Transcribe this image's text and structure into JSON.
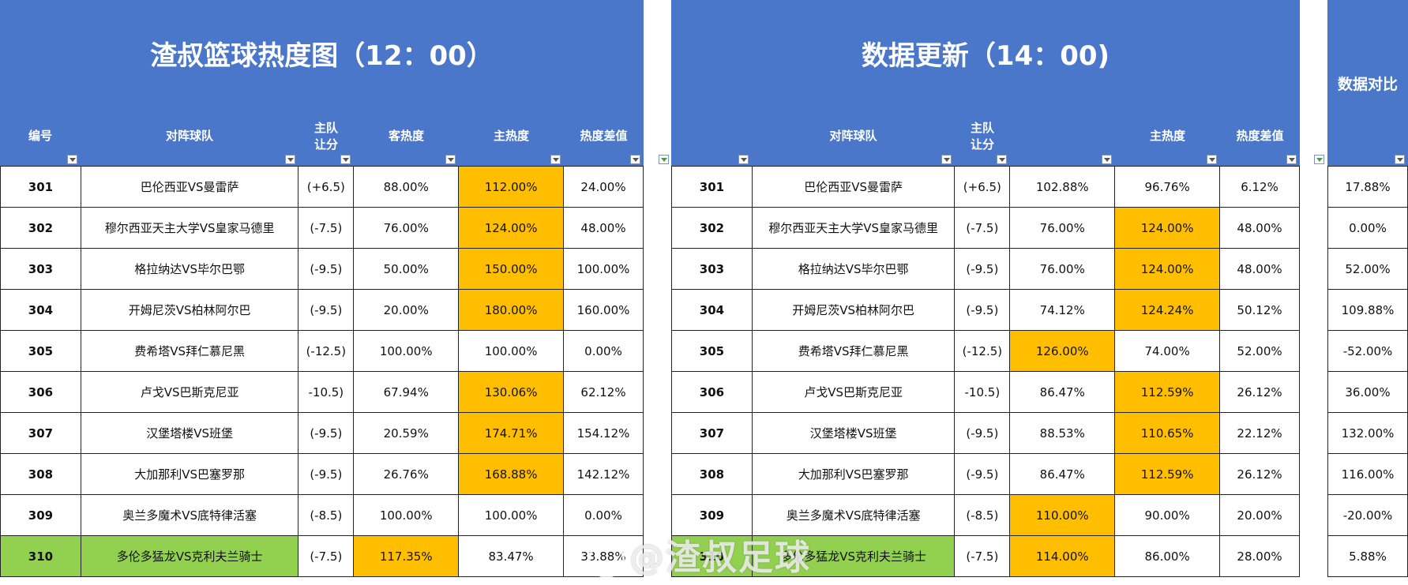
{
  "left": {
    "title": "渣叔篮球热度图（12：00）",
    "headers": {
      "id": "编号",
      "teams": "对阵球队",
      "handicap_line1": "主队",
      "handicap_line2": "让分",
      "away": "客热度",
      "home": "主热度",
      "diff": "热度差值"
    },
    "rows": [
      {
        "id": "301",
        "teams": "巴伦西亚VS曼雷萨",
        "handicap": "(+6.5)",
        "away": "88.00%",
        "home": "112.00%",
        "diff": "24.00%",
        "hl": "home",
        "green": false
      },
      {
        "id": "302",
        "teams": "穆尔西亚天主大学VS皇家马德里",
        "handicap": "(-7.5)",
        "away": "76.00%",
        "home": "124.00%",
        "diff": "48.00%",
        "hl": "home",
        "green": false
      },
      {
        "id": "303",
        "teams": "格拉纳达VS毕尔巴鄂",
        "handicap": "(-9.5)",
        "away": "50.00%",
        "home": "150.00%",
        "diff": "100.00%",
        "hl": "home",
        "green": false
      },
      {
        "id": "304",
        "teams": "开姆尼茨VS柏林阿尔巴",
        "handicap": "(-9.5)",
        "away": "20.00%",
        "home": "180.00%",
        "diff": "160.00%",
        "hl": "home",
        "green": false
      },
      {
        "id": "305",
        "teams": "费希塔VS拜仁慕尼黑",
        "handicap": "(-12.5)",
        "away": "100.00%",
        "home": "100.00%",
        "diff": "0.00%",
        "hl": "",
        "green": false
      },
      {
        "id": "306",
        "teams": "卢戈VS巴斯克尼亚",
        "handicap": "-10.5)",
        "away": "67.94%",
        "home": "130.06%",
        "diff": "62.12%",
        "hl": "home",
        "green": false
      },
      {
        "id": "307",
        "teams": "汉堡塔楼VS班堡",
        "handicap": "(-9.5)",
        "away": "20.59%",
        "home": "174.71%",
        "diff": "154.12%",
        "hl": "home",
        "green": false
      },
      {
        "id": "308",
        "teams": "大加那利VS巴塞罗那",
        "handicap": "(-9.5)",
        "away": "26.76%",
        "home": "168.88%",
        "diff": "142.12%",
        "hl": "home",
        "green": false
      },
      {
        "id": "309",
        "teams": "奥兰多魔术VS底特律活塞",
        "handicap": "(-8.5)",
        "away": "100.00%",
        "home": "100.00%",
        "diff": "0.00%",
        "hl": "",
        "green": false
      },
      {
        "id": "310",
        "teams": "多伦多猛龙VS克利夫兰骑士",
        "handicap": "(-7.5)",
        "away": "117.35%",
        "home": "83.47%",
        "diff": "33.88%",
        "hl": "away",
        "green": true
      }
    ]
  },
  "right": {
    "title": "数据更新（14：00)",
    "headers": {
      "teams": "对阵球队",
      "handicap_line1": "主队",
      "handicap_line2": "让分",
      "away": "",
      "home": "主热度",
      "diff": "热度差值"
    },
    "rows": [
      {
        "id": "301",
        "teams": "巴伦西亚VS曼雷萨",
        "handicap": "(+6.5)",
        "away": "102.88%",
        "home": "96.76%",
        "diff": "6.12%",
        "hl": "",
        "green": false
      },
      {
        "id": "302",
        "teams": "穆尔西亚天主大学VS皇家马德里",
        "handicap": "(-7.5)",
        "away": "76.00%",
        "home": "124.00%",
        "diff": "48.00%",
        "hl": "home",
        "green": false
      },
      {
        "id": "303",
        "teams": "格拉纳达VS毕尔巴鄂",
        "handicap": "(-9.5)",
        "away": "76.00%",
        "home": "124.00%",
        "diff": "48.00%",
        "hl": "home",
        "green": false
      },
      {
        "id": "304",
        "teams": "开姆尼茨VS柏林阿尔巴",
        "handicap": "(-9.5)",
        "away": "74.12%",
        "home": "124.24%",
        "diff": "50.12%",
        "hl": "home",
        "green": false
      },
      {
        "id": "305",
        "teams": "费希塔VS拜仁慕尼黑",
        "handicap": "(-12.5)",
        "away": "126.00%",
        "home": "74.00%",
        "diff": "52.00%",
        "hl": "away",
        "green": false
      },
      {
        "id": "306",
        "teams": "卢戈VS巴斯克尼亚",
        "handicap": "-10.5)",
        "away": "86.47%",
        "home": "112.59%",
        "diff": "26.12%",
        "hl": "home",
        "green": false
      },
      {
        "id": "307",
        "teams": "汉堡塔楼VS班堡",
        "handicap": "(-9.5)",
        "away": "88.53%",
        "home": "110.65%",
        "diff": "22.12%",
        "hl": "home",
        "green": false
      },
      {
        "id": "308",
        "teams": "大加那利VS巴塞罗那",
        "handicap": "(-9.5)",
        "away": "86.47%",
        "home": "112.59%",
        "diff": "26.12%",
        "hl": "home",
        "green": false
      },
      {
        "id": "309",
        "teams": "奥兰多魔术VS底特律活塞",
        "handicap": "(-8.5)",
        "away": "110.00%",
        "home": "90.00%",
        "diff": "20.00%",
        "hl": "away",
        "green": false
      },
      {
        "id": "310",
        "teams": "多伦多猛龙VS克利夫兰骑士",
        "handicap": "(-7.5)",
        "away": "114.00%",
        "home": "86.00%",
        "diff": "28.00%",
        "hl": "away",
        "green": true
      }
    ]
  },
  "compare": {
    "title": "数据对比",
    "values": [
      "17.88%",
      "0.00%",
      "52.00%",
      "109.88%",
      "-52.00%",
      "36.00%",
      "132.00%",
      "116.00%",
      "-20.00%",
      "5.88%"
    ]
  },
  "watermark": "@渣叔足球",
  "colors": {
    "header_blue": "#4a77c9",
    "highlight_orange": "#ffbf00",
    "highlight_green": "#92d050"
  }
}
